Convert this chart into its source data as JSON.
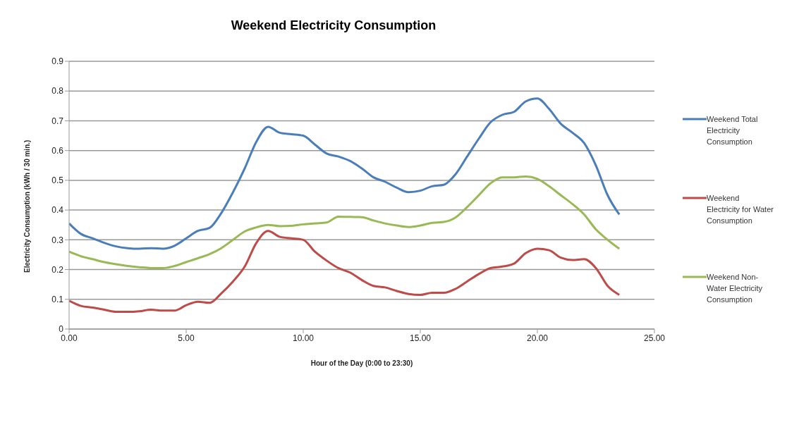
{
  "chart_data": {
    "type": "line",
    "title": "Weekend Electricity Consumption",
    "xlabel": "Hour of the Day (0:00 to 23:30)",
    "ylabel": "Electricity Consumption (kWh / 30 min.)",
    "x": [
      0,
      0.5,
      1,
      1.5,
      2,
      2.5,
      3,
      3.5,
      4,
      4.5,
      5,
      5.5,
      6,
      6.5,
      7,
      7.5,
      8,
      8.5,
      9,
      9.5,
      10,
      10.5,
      11,
      11.5,
      12,
      12.5,
      13,
      13.5,
      14,
      14.5,
      15,
      15.5,
      16,
      16.5,
      17,
      17.5,
      18,
      18.5,
      19,
      19.5,
      20,
      20.5,
      21,
      21.5,
      22,
      22.5,
      23,
      23.5
    ],
    "series": [
      {
        "name": "Weekend Total Electricity Consumption",
        "color": "#4a7ebb",
        "values": [
          0.355,
          0.32,
          0.305,
          0.29,
          0.278,
          0.272,
          0.27,
          0.272,
          0.27,
          0.28,
          0.305,
          0.33,
          0.34,
          0.39,
          0.46,
          0.54,
          0.63,
          0.68,
          0.66,
          0.655,
          0.65,
          0.62,
          0.59,
          0.58,
          0.565,
          0.54,
          0.51,
          0.495,
          0.475,
          0.46,
          0.465,
          0.48,
          0.485,
          0.52,
          0.58,
          0.64,
          0.695,
          0.72,
          0.73,
          0.765,
          0.775,
          0.74,
          0.69,
          0.66,
          0.625,
          0.55,
          0.45,
          0.385
        ]
      },
      {
        "name": "Weekend Electricity for Water Consumption",
        "color": "#be4b48",
        "values": [
          0.095,
          0.078,
          0.072,
          0.065,
          0.058,
          0.058,
          0.06,
          0.065,
          0.062,
          0.062,
          0.08,
          0.092,
          0.088,
          0.12,
          0.16,
          0.21,
          0.29,
          0.33,
          0.31,
          0.305,
          0.3,
          0.26,
          0.23,
          0.205,
          0.19,
          0.165,
          0.145,
          0.14,
          0.128,
          0.118,
          0.115,
          0.122,
          0.122,
          0.135,
          0.16,
          0.185,
          0.205,
          0.21,
          0.22,
          0.255,
          0.27,
          0.265,
          0.24,
          0.232,
          0.235,
          0.205,
          0.145,
          0.115
        ]
      },
      {
        "name": "Weekend Non-Water Electricity Consumption",
        "color": "#98b954",
        "values": [
          0.26,
          0.245,
          0.235,
          0.225,
          0.218,
          0.212,
          0.208,
          0.205,
          0.205,
          0.212,
          0.225,
          0.238,
          0.252,
          0.272,
          0.3,
          0.328,
          0.342,
          0.35,
          0.346,
          0.347,
          0.352,
          0.355,
          0.358,
          0.378,
          0.377,
          0.376,
          0.365,
          0.355,
          0.348,
          0.343,
          0.348,
          0.357,
          0.36,
          0.375,
          0.41,
          0.45,
          0.49,
          0.51,
          0.51,
          0.513,
          0.505,
          0.48,
          0.45,
          0.42,
          0.385,
          0.335,
          0.3,
          0.27
        ]
      }
    ],
    "xlim": [
      0,
      25
    ],
    "xticks": [
      {
        "value": 0,
        "label": "0.00"
      },
      {
        "value": 5,
        "label": "5.00"
      },
      {
        "value": 10,
        "label": "10.00"
      },
      {
        "value": 15,
        "label": "15.00"
      },
      {
        "value": 20,
        "label": "20.00"
      },
      {
        "value": 25,
        "label": "25.00"
      }
    ],
    "ylim": [
      0,
      0.9
    ],
    "yticks": [
      0,
      0.1,
      0.2,
      0.3,
      0.4,
      0.5,
      0.6,
      0.7,
      0.8,
      0.9
    ],
    "grid": "y",
    "legend": "right",
    "marker": "none",
    "line_style": "solid"
  }
}
